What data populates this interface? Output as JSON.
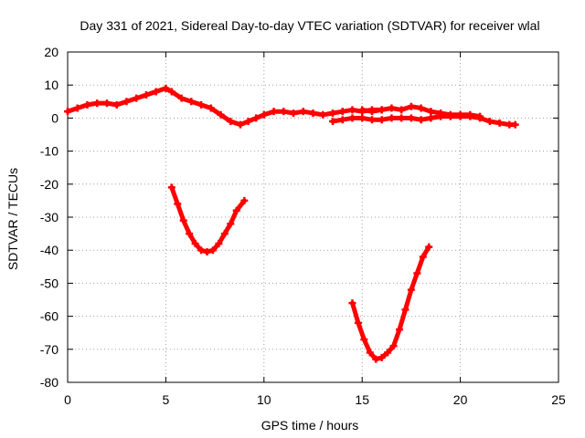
{
  "chart_data": {
    "type": "scatter",
    "title": "Day 331 of 2021, Sidereal Day-to-day VTEC variation (SDTVAR) for receiver wlal",
    "xlabel": "GPS time / hours",
    "ylabel": "SDTVAR / TECUs",
    "xlim": [
      0,
      25
    ],
    "ylim": [
      -80,
      20
    ],
    "xticks": [
      0,
      5,
      10,
      15,
      20,
      25
    ],
    "yticks": [
      -80,
      -70,
      -60,
      -50,
      -40,
      -30,
      -20,
      -10,
      0,
      10,
      20
    ],
    "xtick_labels": [
      "0",
      "5",
      "10",
      "15",
      "20",
      "25"
    ],
    "ytick_labels": [
      "-80",
      "-70",
      "-60",
      "-50",
      "-40",
      "-30",
      "-20",
      "-10",
      "0",
      "10",
      "20"
    ],
    "grid": true,
    "series_color": "#ff0000",
    "series": [
      {
        "name": "main-trace-a",
        "x": [
          0,
          0.5,
          1,
          1.5,
          2,
          2.5,
          3,
          3.5,
          4,
          4.5,
          5,
          5.3,
          5.8,
          6.3,
          6.8,
          7.3,
          7.8,
          8.3,
          8.8,
          9.2,
          9.6,
          10,
          10.5,
          11,
          11.5,
          12,
          12.5,
          13,
          13.5,
          14,
          14.5,
          15,
          15.5,
          16
        ],
        "y": [
          2,
          3,
          4,
          4.5,
          4.5,
          4,
          5,
          6,
          7,
          8,
          9,
          8,
          6,
          5,
          4,
          3,
          1,
          -1,
          -2,
          -1,
          0,
          1,
          2,
          2,
          1.5,
          2,
          1.5,
          1,
          1.5,
          2,
          2.5,
          2,
          2.5,
          2.5
        ]
      },
      {
        "name": "main-trace-b",
        "x": [
          13.5,
          14,
          14.5,
          15,
          15.5,
          16,
          16.5,
          17,
          17.5,
          18,
          18.5,
          19,
          19.5,
          20,
          20.5,
          21,
          21.5,
          22,
          22.5,
          22.8
        ],
        "y": [
          -1,
          -0.5,
          0,
          0,
          -0.5,
          -0.5,
          0,
          0,
          0,
          -0.5,
          0,
          0.5,
          0.5,
          0.5,
          0.5,
          0,
          -1,
          -1.5,
          -2,
          -2
        ]
      },
      {
        "name": "main-trace-c",
        "x": [
          15,
          15.5,
          16,
          16.5,
          17,
          17.5,
          18,
          18.5,
          19,
          19.5,
          20,
          20.5,
          21
        ],
        "y": [
          2.5,
          2,
          2.5,
          3,
          2.5,
          3.5,
          3,
          2,
          1.5,
          1,
          1,
          1,
          0.5
        ]
      },
      {
        "name": "dip-trace-1",
        "x": [
          5.3,
          5.6,
          5.9,
          6.2,
          6.5,
          6.8,
          7.1,
          7.4,
          7.7,
          8.0,
          8.3,
          8.6,
          9.0
        ],
        "y": [
          -21,
          -26,
          -31,
          -35,
          -38,
          -40,
          -40.5,
          -40,
          -38,
          -35,
          -32,
          -28,
          -25
        ]
      },
      {
        "name": "dip-trace-2",
        "x": [
          14.5,
          14.8,
          15.1,
          15.4,
          15.7,
          16.0,
          16.3,
          16.6,
          16.9,
          17.2,
          17.5,
          17.8,
          18.1,
          18.4
        ],
        "y": [
          -56,
          -62,
          -67,
          -71,
          -73,
          -72.5,
          -71,
          -69,
          -64,
          -58,
          -52,
          -47,
          -42,
          -39
        ]
      }
    ]
  }
}
